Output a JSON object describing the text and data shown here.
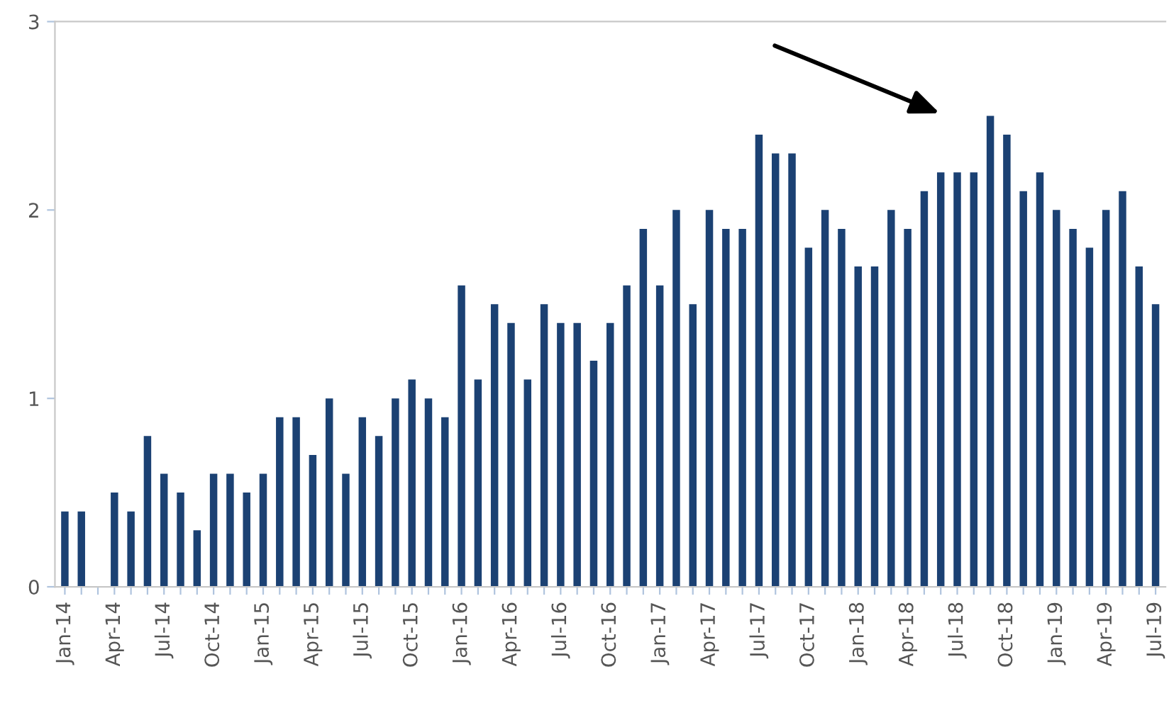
{
  "chart_data": {
    "type": "bar",
    "categories": [
      "Jan-14",
      null,
      null,
      "Apr-14",
      null,
      null,
      "Jul-14",
      null,
      null,
      "Oct-14",
      null,
      null,
      "Jan-15",
      null,
      null,
      "Apr-15",
      null,
      null,
      "Jul-15",
      null,
      null,
      "Oct-15",
      null,
      null,
      "Jan-16",
      null,
      null,
      "Apr-16",
      null,
      null,
      "Jul-16",
      null,
      null,
      "Oct-16",
      null,
      null,
      "Jan-17",
      null,
      null,
      "Apr-17",
      null,
      null,
      "Jul-17",
      null,
      null,
      "Oct-17",
      null,
      null,
      "Jan-18",
      null,
      null,
      "Apr-18",
      null,
      null,
      "Jul-18",
      null,
      null,
      "Oct-18",
      null,
      null,
      "Jan-19",
      null,
      null,
      "Apr-19",
      null,
      null,
      "Jul-19"
    ],
    "values": [
      0.4,
      0.4,
      0,
      0.5,
      0.4,
      0.8,
      0.6,
      0.5,
      0.3,
      0.6,
      0.6,
      0.5,
      0.6,
      0.9,
      0.9,
      0.7,
      1.0,
      0.6,
      0.9,
      0.8,
      1.0,
      1.1,
      1.0,
      0.9,
      1.6,
      1.1,
      1.5,
      1.4,
      1.1,
      1.5,
      1.4,
      1.4,
      1.2,
      1.4,
      1.6,
      1.9,
      1.6,
      2.0,
      1.5,
      2.0,
      1.9,
      1.9,
      2.4,
      2.3,
      2.3,
      1.8,
      2.0,
      1.9,
      1.7,
      1.7,
      2.0,
      1.9,
      2.1,
      2.2,
      2.2,
      2.2,
      2.5,
      2.4,
      2.1,
      2.2,
      2.0,
      1.9,
      1.8,
      2.0,
      2.1,
      1.7,
      1.5
    ],
    "color": "#1b4173",
    "ylim": [
      0,
      3
    ],
    "yticks": [
      0,
      1,
      2,
      3
    ],
    "grid": false
  }
}
